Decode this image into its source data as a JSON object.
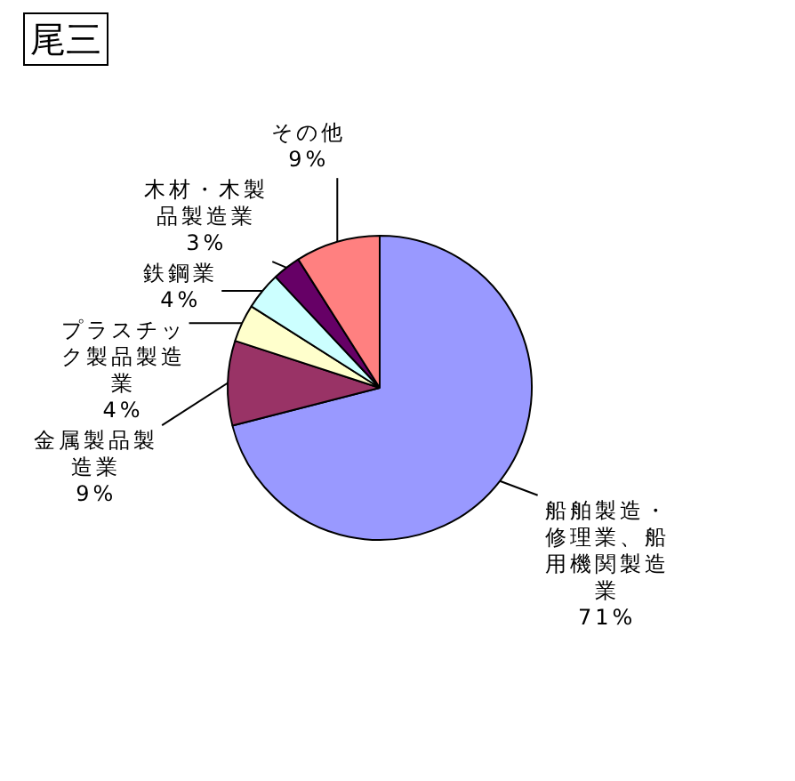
{
  "chart_data": {
    "type": "pie",
    "title": "尾三",
    "categories": [
      "船舶製造・修理業、船用機関製造業",
      "金属製品製造業",
      "プラスチック製品製造業",
      "鉄鋼業",
      "木材・木製品製造業",
      "その他"
    ],
    "values": [
      71,
      9,
      4,
      4,
      3,
      9
    ],
    "colors": [
      "#9999ff",
      "#993366",
      "#ffffcc",
      "#ccffff",
      "#660066",
      "#ff8080"
    ],
    "value_labels": [
      "71%",
      "9%",
      "4%",
      "4%",
      "3%",
      "9%"
    ]
  }
}
